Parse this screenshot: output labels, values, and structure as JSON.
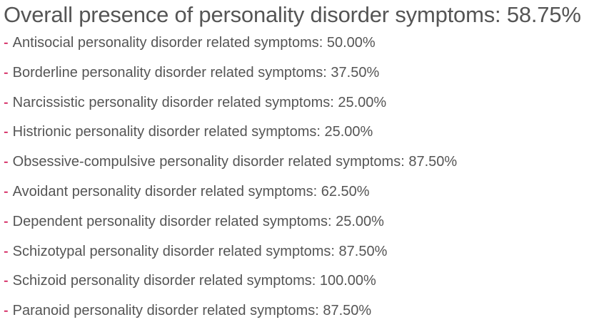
{
  "overall": {
    "title": "Overall presence of personality disorder symptoms: 58.75%"
  },
  "accent_color": "#cc0044",
  "text_color": "#555555",
  "items": [
    {
      "bullet": "-",
      "label": "Antisocial personality disorder related symptoms: 50.00%",
      "percent": 50.0
    },
    {
      "bullet": "-",
      "label": "Borderline personality disorder related symptoms: 37.50%",
      "percent": 37.5
    },
    {
      "bullet": "-",
      "label": "Narcissistic personality disorder related symptoms: 25.00%",
      "percent": 25.0
    },
    {
      "bullet": "-",
      "label": "Histrionic personality disorder related symptoms: 25.00%",
      "percent": 25.0
    },
    {
      "bullet": "-",
      "label": "Obsessive-compulsive personality disorder related symptoms: 87.50%",
      "percent": 87.5
    },
    {
      "bullet": "-",
      "label": "Avoidant personality disorder related symptoms: 62.50%",
      "percent": 62.5
    },
    {
      "bullet": "-",
      "label": "Dependent personality disorder related symptoms: 25.00%",
      "percent": 25.0
    },
    {
      "bullet": "-",
      "label": "Schizotypal personality disorder related symptoms: 87.50%",
      "percent": 87.5
    },
    {
      "bullet": "-",
      "label": "Schizoid personality disorder related symptoms: 100.00%",
      "percent": 100.0
    },
    {
      "bullet": "-",
      "label": "Paranoid personality disorder related symptoms: 87.50%",
      "percent": 87.5
    }
  ]
}
